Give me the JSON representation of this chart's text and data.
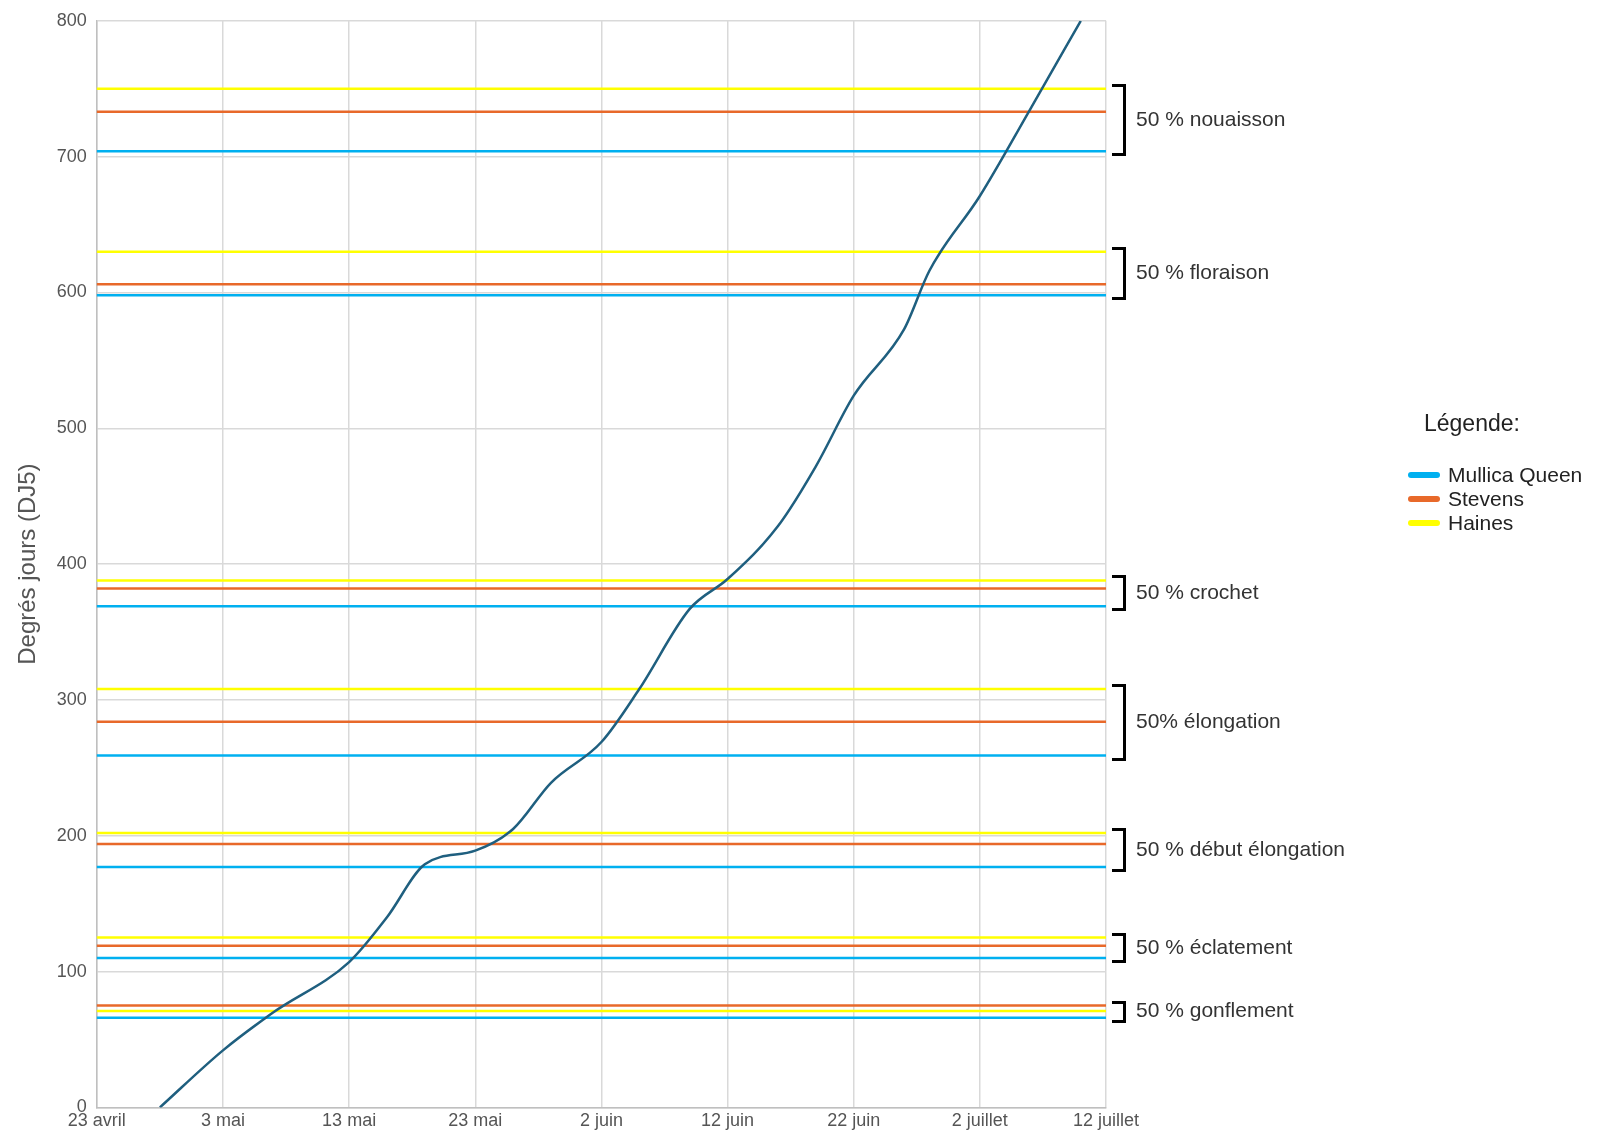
{
  "chart_data": {
    "type": "line",
    "ylabel": "Degrés jours (DJ5)",
    "legend_title": "Légende:",
    "legend": "right",
    "grid": true,
    "marker": "none",
    "line_style": "solid",
    "x": [
      "--04-28",
      "--05-03",
      "--05-07",
      "--05-13",
      "--05-16",
      "--05-19",
      "--05-23",
      "--05-26",
      "--05-29",
      "--06-02",
      "--06-05",
      "--06-09",
      "--06-12",
      "--06-16",
      "--06-19",
      "--06-22",
      "--06-26",
      "--06-28",
      "--07-02",
      "--07-06",
      "--07-10"
    ],
    "series": [
      {
        "color": "#1f5f7f",
        "values": [
          0,
          42,
          70,
          107,
          140,
          179,
          189,
          205,
          239,
          269,
          308,
          367,
          389,
          428,
          472,
          524,
          573,
          616,
          671,
          735,
          800
        ]
      }
    ],
    "xlim": [
      "--04-23",
      "--07-12"
    ],
    "xticks": [
      {
        "value": "--04-23",
        "label": "23 avril"
      },
      {
        "value": "--05-03",
        "label": "3 mai"
      },
      {
        "value": "--05-13",
        "label": "13 mai"
      },
      {
        "value": "--05-23",
        "label": "23 mai"
      },
      {
        "value": "--06-02",
        "label": "2 juin"
      },
      {
        "value": "--06-12",
        "label": "12 juin"
      },
      {
        "value": "--06-22",
        "label": "22 juin"
      },
      {
        "value": "--07-02",
        "label": "2 juillet"
      },
      {
        "value": "--07-12",
        "label": "12 juillet"
      }
    ],
    "ylim": [
      0,
      800
    ],
    "yticks": [
      0,
      100,
      200,
      300,
      400,
      500,
      600,
      700,
      800
    ],
    "ref_lines": [
      {
        "axis": "y",
        "value": 66,
        "label": "Mullica Queen",
        "color": "#00b0f0"
      },
      {
        "axis": "y",
        "value": 75,
        "label": "Stevens",
        "color": "#e8692a"
      },
      {
        "axis": "y",
        "value": 71,
        "label": "Haines",
        "color": "#ffff00"
      },
      {
        "axis": "y",
        "value": 110,
        "color": "#00b0f0"
      },
      {
        "axis": "y",
        "value": 119,
        "color": "#e8692a"
      },
      {
        "axis": "y",
        "value": 125,
        "color": "#ffff00"
      },
      {
        "axis": "y",
        "value": 177,
        "color": "#00b0f0"
      },
      {
        "axis": "y",
        "value": 194,
        "color": "#e8692a"
      },
      {
        "axis": "y",
        "value": 202,
        "color": "#ffff00"
      },
      {
        "axis": "y",
        "value": 259,
        "color": "#00b0f0"
      },
      {
        "axis": "y",
        "value": 284,
        "color": "#e8692a"
      },
      {
        "axis": "y",
        "value": 308,
        "color": "#ffff00"
      },
      {
        "axis": "y",
        "value": 369,
        "color": "#00b0f0"
      },
      {
        "axis": "y",
        "value": 382,
        "color": "#e8692a"
      },
      {
        "axis": "y",
        "value": 388,
        "color": "#ffff00"
      },
      {
        "axis": "y",
        "value": 598,
        "color": "#00b0f0"
      },
      {
        "axis": "y",
        "value": 606,
        "color": "#e8692a"
      },
      {
        "axis": "y",
        "value": 630,
        "color": "#ffff00"
      },
      {
        "axis": "y",
        "value": 704,
        "color": "#00b0f0"
      },
      {
        "axis": "y",
        "value": 733,
        "color": "#e8692a"
      },
      {
        "axis": "y",
        "value": 750,
        "color": "#ffff00"
      }
    ],
    "annotations": [
      "50 % gonflement",
      "50 % éclatement",
      "50 % début élongation",
      "50% élongation",
      "50 % crochet",
      "50 % floraison",
      "50 % nouaisson"
    ]
  }
}
